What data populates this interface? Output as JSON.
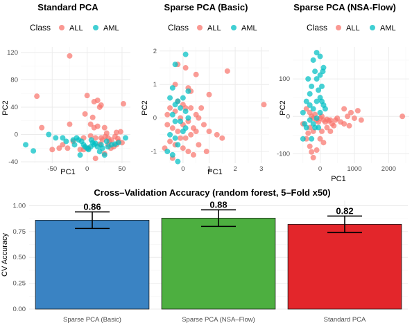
{
  "colors": {
    "ALL": "#F8766D",
    "AML": "#00BFC4"
  },
  "chart_data": [
    {
      "type": "scatter",
      "title": "Standard PCA",
      "xlabel": "PC1",
      "ylabel": "PC2",
      "legend": {
        "title": "Class",
        "entries": [
          "ALL",
          "AML"
        ],
        "position": "top"
      },
      "xlim": [
        -95,
        62
      ],
      "ylim": [
        -42,
        128
      ],
      "xticks": [
        -50,
        0,
        50
      ],
      "yticks": [
        -40,
        0,
        40,
        80,
        120
      ],
      "series": [
        {
          "name": "ALL",
          "points": [
            [
              -25,
              115
            ],
            [
              -72,
              56
            ],
            [
              -65,
              10
            ],
            [
              -50,
              -22
            ],
            [
              -40,
              -20
            ],
            [
              -28,
              -20
            ],
            [
              -25,
              15
            ],
            [
              -20,
              -10
            ],
            [
              -5,
              -5
            ],
            [
              0,
              57
            ],
            [
              5,
              -2
            ],
            [
              8,
              25
            ],
            [
              10,
              48
            ],
            [
              12,
              -5
            ],
            [
              15,
              50
            ],
            [
              18,
              40
            ],
            [
              20,
              43
            ],
            [
              22,
              -8
            ],
            [
              25,
              10
            ],
            [
              28,
              2
            ],
            [
              30,
              -5
            ],
            [
              32,
              -10
            ],
            [
              35,
              -8
            ],
            [
              38,
              -18
            ],
            [
              40,
              -3
            ],
            [
              42,
              3
            ],
            [
              45,
              -10
            ],
            [
              48,
              4
            ],
            [
              50,
              -12
            ],
            [
              52,
              45
            ],
            [
              10,
              10
            ],
            [
              15,
              12
            ],
            [
              5,
              15
            ],
            [
              -10,
              -22
            ],
            [
              -3,
              30
            ],
            [
              2,
              -20
            ],
            [
              20,
              -5
            ],
            [
              26,
              -3
            ],
            [
              42,
              -15
            ],
            [
              30,
              -15
            ],
            [
              25,
              -28
            ],
            [
              18,
              -14
            ],
            [
              34,
              -20
            ],
            [
              44,
              -6
            ],
            [
              -35,
              -15
            ],
            [
              12,
              -35
            ],
            [
              -5,
              -22
            ]
          ]
        },
        {
          "name": "AML",
          "points": [
            [
              -88,
              -15
            ],
            [
              -77,
              -24
            ],
            [
              -55,
              0
            ],
            [
              -45,
              -5
            ],
            [
              -35,
              -5
            ],
            [
              -30,
              -10
            ],
            [
              -20,
              -8
            ],
            [
              -15,
              -5
            ],
            [
              -12,
              -8
            ],
            [
              -8,
              -10
            ],
            [
              -5,
              -15
            ],
            [
              -3,
              -18
            ],
            [
              0,
              -20
            ],
            [
              2,
              -22
            ],
            [
              5,
              -18
            ],
            [
              8,
              -12
            ],
            [
              10,
              -15
            ],
            [
              12,
              -13
            ],
            [
              15,
              -18
            ],
            [
              20,
              -15
            ],
            [
              22,
              -20
            ],
            [
              28,
              -10
            ],
            [
              30,
              -18
            ],
            [
              35,
              -15
            ],
            [
              40,
              -14
            ],
            [
              45,
              -12
            ],
            [
              55,
              -5
            ],
            [
              25,
              -30
            ],
            [
              -10,
              -30
            ],
            [
              18,
              -25
            ],
            [
              6,
              -8
            ],
            [
              -18,
              -15
            ]
          ]
        }
      ]
    },
    {
      "type": "scatter",
      "title": "Sparse PCA (Basic)",
      "xlabel": "PC1",
      "ylabel": "PC2",
      "legend": {
        "title": "Class",
        "entries": [
          "ALL",
          "AML"
        ],
        "position": "top"
      },
      "xlim": [
        -0.9,
        3.3
      ],
      "ylim": [
        -1.35,
        2.12
      ],
      "xticks": [
        0,
        1,
        2,
        3
      ],
      "yticks": [
        -1,
        0,
        1,
        2
      ],
      "series": [
        {
          "name": "ALL",
          "points": [
            [
              -0.2,
              1.6
            ],
            [
              0.1,
              1.5
            ],
            [
              0.5,
              1.3
            ],
            [
              1.7,
              1.4
            ],
            [
              3.1,
              0.4
            ],
            [
              -0.3,
              1.0
            ],
            [
              0.2,
              0.9
            ],
            [
              0.3,
              0.8
            ],
            [
              1.0,
              0.7
            ],
            [
              -0.5,
              0.3
            ],
            [
              -0.3,
              0.2
            ],
            [
              0,
              0.4
            ],
            [
              0.1,
              0.3
            ],
            [
              0.3,
              0.3
            ],
            [
              0.5,
              0.1
            ],
            [
              0.6,
              0
            ],
            [
              0.8,
              -0.2
            ],
            [
              1.0,
              -0.4
            ],
            [
              1.3,
              -0.5
            ],
            [
              1.5,
              -0.6
            ],
            [
              -0.6,
              -0.2
            ],
            [
              -0.4,
              -0.3
            ],
            [
              -0.2,
              -0.4
            ],
            [
              0,
              -0.2
            ],
            [
              0.2,
              -0.1
            ],
            [
              0.4,
              -0.3
            ],
            [
              -0.5,
              -0.7
            ],
            [
              -0.3,
              -0.8
            ],
            [
              0,
              -0.9
            ],
            [
              0.2,
              -1.0
            ],
            [
              0.4,
              -1.1
            ],
            [
              -0.7,
              -0.9
            ],
            [
              -0.4,
              -1.2
            ],
            [
              0.1,
              -0.6
            ],
            [
              -0.1,
              0.0
            ],
            [
              0.6,
              -0.8
            ],
            [
              0.9,
              -1.0
            ],
            [
              -0.2,
              0.5
            ],
            [
              0.3,
              -0.5
            ],
            [
              0.7,
              0.3
            ],
            [
              -0.1,
              -0.6
            ],
            [
              0.5,
              -0.4
            ],
            [
              -0.6,
              0.1
            ]
          ]
        },
        {
          "name": "AML",
          "points": [
            [
              0.1,
              1.9
            ],
            [
              -0.3,
              1.6
            ],
            [
              -0.5,
              0.6
            ],
            [
              -0.3,
              0.4
            ],
            [
              -0.2,
              0.5
            ],
            [
              -0.4,
              0.1
            ],
            [
              -0.3,
              -0.1
            ],
            [
              -0.5,
              -0.5
            ],
            [
              -0.3,
              -0.6
            ],
            [
              -0.2,
              -0.8
            ],
            [
              -0.4,
              -1.1
            ],
            [
              0.1,
              0.2
            ],
            [
              -0.1,
              0.3
            ],
            [
              0.2,
              0.0
            ],
            [
              -0.1,
              -0.1
            ],
            [
              0,
              0.6
            ],
            [
              -0.6,
              -1.0
            ],
            [
              -0.2,
              -1.3
            ],
            [
              -0.4,
              0.9
            ],
            [
              0.2,
              0.8
            ],
            [
              0.1,
              -0.3
            ],
            [
              0,
              -0.4
            ]
          ]
        }
      ]
    },
    {
      "type": "scatter",
      "title": "Sparse PCA (NSA-Flow)",
      "xlabel": "PC1",
      "ylabel": "PC2",
      "legend": {
        "title": "Class",
        "entries": [
          "ALL",
          "AML"
        ],
        "position": "top"
      },
      "xlim": [
        -800,
        2600
      ],
      "ylim": [
        -125,
        185
      ],
      "xticks": [
        0,
        1000,
        2000
      ],
      "yticks": [
        -100,
        0,
        100
      ],
      "series": [
        {
          "name": "ALL",
          "points": [
            [
              -400,
              20
            ],
            [
              -300,
              10
            ],
            [
              -250,
              0
            ],
            [
              -200,
              -5
            ],
            [
              -150,
              5
            ],
            [
              -100,
              -10
            ],
            [
              -50,
              -15
            ],
            [
              0,
              -5
            ],
            [
              50,
              0
            ],
            [
              100,
              -10
            ],
            [
              150,
              -15
            ],
            [
              200,
              -8
            ],
            [
              250,
              -12
            ],
            [
              300,
              -10
            ],
            [
              350,
              -20
            ],
            [
              400,
              -25
            ],
            [
              500,
              -5
            ],
            [
              600,
              -15
            ],
            [
              700,
              -20
            ],
            [
              800,
              0
            ],
            [
              900,
              10
            ],
            [
              1000,
              -5
            ],
            [
              1100,
              15
            ],
            [
              1200,
              -10
            ],
            [
              700,
              20
            ],
            [
              -300,
              -30
            ],
            [
              -200,
              -40
            ],
            [
              -400,
              -60
            ],
            [
              -300,
              -80
            ],
            [
              -200,
              -110
            ],
            [
              -100,
              -90
            ],
            [
              0,
              -60
            ],
            [
              100,
              -70
            ],
            [
              -500,
              -20
            ],
            [
              2400,
              0
            ],
            [
              50,
              -40
            ],
            [
              300,
              -40
            ],
            [
              -250,
              -95
            ],
            [
              200,
              -30
            ],
            [
              -350,
              -45
            ],
            [
              450,
              -10
            ],
            [
              850,
              -25
            ]
          ]
        },
        {
          "name": "AML",
          "points": [
            [
              -100,
              170
            ],
            [
              0,
              160
            ],
            [
              100,
              130
            ],
            [
              -200,
              150
            ],
            [
              -150,
              120
            ],
            [
              -100,
              100
            ],
            [
              0,
              110
            ],
            [
              50,
              80
            ],
            [
              -50,
              70
            ],
            [
              -250,
              80
            ],
            [
              -300,
              60
            ],
            [
              -400,
              40
            ],
            [
              -300,
              30
            ],
            [
              -200,
              20
            ],
            [
              -100,
              40
            ],
            [
              0,
              50
            ],
            [
              50,
              40
            ],
            [
              100,
              30
            ],
            [
              -500,
              10
            ],
            [
              -450,
              -20
            ],
            [
              -400,
              -30
            ],
            [
              -200,
              -20
            ],
            [
              -100,
              -5
            ],
            [
              -300,
              -10
            ],
            [
              -150,
              -30
            ],
            [
              -500,
              -60
            ],
            [
              -50,
              -30
            ],
            [
              150,
              20
            ],
            [
              -350,
              100
            ],
            [
              80,
              120
            ],
            [
              -250,
              -60
            ],
            [
              0,
              10
            ]
          ]
        }
      ]
    },
    {
      "type": "bar",
      "title": "Cross–Validation Accuracy (random forest, 5–Fold x50)",
      "xlabel": "",
      "ylabel": "CV Accuracy",
      "ylim": [
        0,
        1.05
      ],
      "yticks": [
        0.0,
        0.25,
        0.5,
        0.75,
        1.0
      ],
      "categories": [
        "Sparse PCA (Basic)",
        "Sparse PCA (NSA–Flow)",
        "Standard PCA"
      ],
      "values": [
        0.86,
        0.88,
        0.82
      ],
      "labels": [
        "0.86",
        "0.88",
        "0.82"
      ],
      "error_low": [
        0.78,
        0.8,
        0.74
      ],
      "error_high": [
        0.94,
        0.96,
        0.9
      ],
      "bar_colors": [
        "#3A83C3",
        "#4DAF40",
        "#E3262B"
      ]
    }
  ]
}
